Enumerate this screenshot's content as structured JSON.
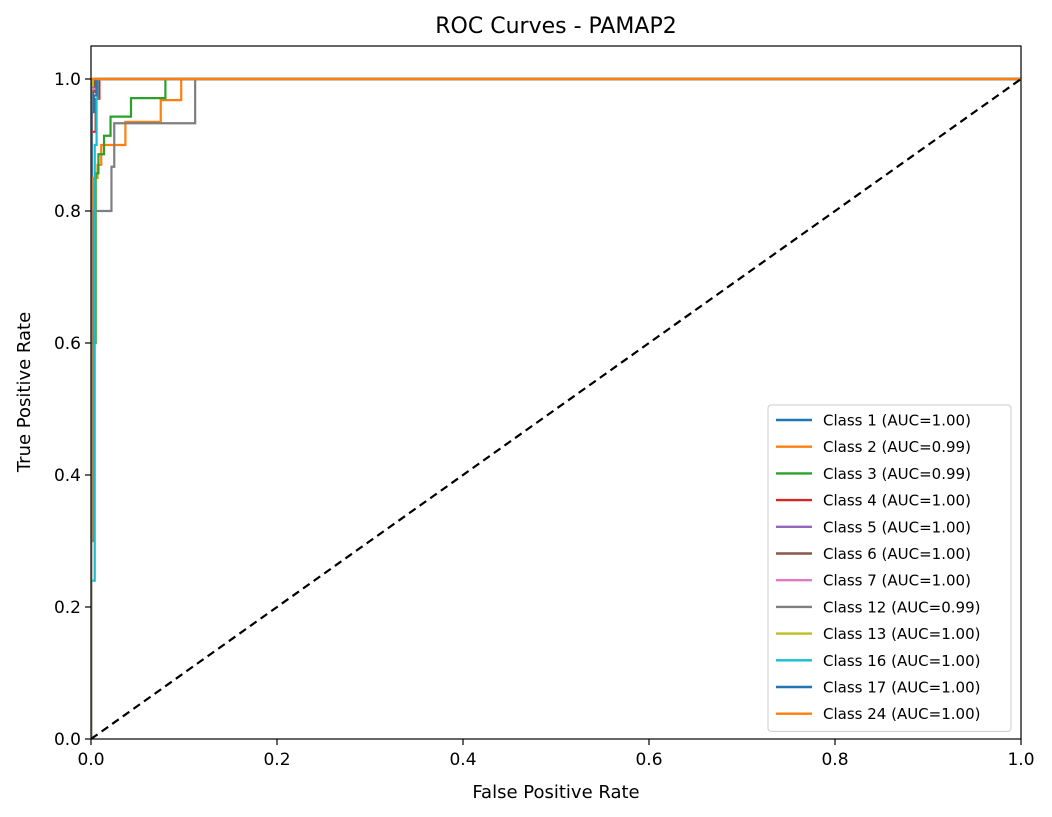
{
  "chart_data": {
    "type": "line",
    "title": "ROC Curves - PAMAP2",
    "xlabel": "False Positive Rate",
    "ylabel": "True Positive Rate",
    "xlim": [
      0.0,
      1.0
    ],
    "ylim": [
      0.0,
      1.05
    ],
    "xticks": [
      "0.0",
      "0.2",
      "0.4",
      "0.6",
      "0.8",
      "1.0"
    ],
    "yticks": [
      "0.0",
      "0.2",
      "0.4",
      "0.6",
      "0.8",
      "1.0"
    ],
    "grid": false,
    "legend_position": "lower-right",
    "reference_line": {
      "x": [
        0,
        1
      ],
      "y": [
        0,
        1
      ],
      "color": "#000000",
      "style": "dashed"
    },
    "series": [
      {
        "name": "Class 1 (AUC=1.00)",
        "color": "#1f77b4",
        "x": [
          0,
          0,
          0.001,
          0.001,
          0.002,
          0.002,
          1
        ],
        "y": [
          0,
          0.7,
          0.7,
          0.95,
          0.95,
          1,
          1
        ]
      },
      {
        "name": "Class 2 (AUC=0.99)",
        "color": "#ff7f0e",
        "x": [
          0,
          0,
          0.002,
          0.002,
          0.007,
          0.007,
          0.011,
          0.011,
          0.037,
          0.037,
          0.075,
          0.075,
          0.097,
          0.097,
          1
        ],
        "y": [
          0,
          0.3,
          0.3,
          0.85,
          0.85,
          0.87,
          0.87,
          0.9,
          0.9,
          0.935,
          0.935,
          0.968,
          0.968,
          1,
          1
        ]
      },
      {
        "name": "Class 3 (AUC=0.99)",
        "color": "#2ca02c",
        "x": [
          0,
          0,
          0.005,
          0.005,
          0.008,
          0.008,
          0.014,
          0.014,
          0.021,
          0.021,
          0.043,
          0.043,
          0.08,
          0.08,
          1
        ],
        "y": [
          0,
          0.6,
          0.6,
          0.857,
          0.857,
          0.886,
          0.886,
          0.914,
          0.914,
          0.943,
          0.943,
          0.971,
          0.971,
          1,
          1
        ]
      },
      {
        "name": "Class 4 (AUC=1.00)",
        "color": "#d62728",
        "x": [
          0,
          0,
          0.005,
          0.005,
          0.009,
          0.009,
          1
        ],
        "y": [
          0,
          0.92,
          0.92,
          0.97,
          0.97,
          1,
          1
        ]
      },
      {
        "name": "Class 5 (AUC=1.00)",
        "color": "#9467bd",
        "x": [
          0,
          0,
          0.003,
          0.003,
          1
        ],
        "y": [
          0,
          0.98,
          0.98,
          1,
          1
        ]
      },
      {
        "name": "Class 6 (AUC=1.00)",
        "color": "#8c564b",
        "x": [
          0,
          0,
          0.004,
          0.004,
          1
        ],
        "y": [
          0,
          0.98,
          0.98,
          1,
          1
        ]
      },
      {
        "name": "Class 7 (AUC=1.00)",
        "color": "#e377c2",
        "x": [
          0,
          0,
          0.006,
          0.006,
          1
        ],
        "y": [
          0,
          0.985,
          0.985,
          1,
          1
        ]
      },
      {
        "name": "Class 12 (AUC=0.99)",
        "color": "#7f7f7f",
        "x": [
          0,
          0,
          0.003,
          0.003,
          0.022,
          0.022,
          0.025,
          0.025,
          0.112,
          0.112,
          1
        ],
        "y": [
          0,
          0.3,
          0.3,
          0.8,
          0.8,
          0.867,
          0.867,
          0.933,
          0.933,
          1,
          1
        ]
      },
      {
        "name": "Class 13 (AUC=1.00)",
        "color": "#bcbd22",
        "x": [
          0,
          0,
          0.002,
          0.002,
          1
        ],
        "y": [
          0,
          0.99,
          0.99,
          1,
          1
        ]
      },
      {
        "name": "Class 16 (AUC=1.00)",
        "color": "#17becf",
        "x": [
          0,
          0,
          0.004,
          0.004,
          0.006,
          0.006,
          0.007,
          0.007,
          1
        ],
        "y": [
          0,
          0.24,
          0.24,
          0.9,
          0.9,
          0.97,
          0.97,
          1,
          1
        ]
      },
      {
        "name": "Class 17 (AUC=1.00)",
        "color": "#1f77b4",
        "x": [
          0,
          0,
          0.003,
          0.003,
          0.006,
          0.006,
          1
        ],
        "y": [
          0,
          0.95,
          0.95,
          0.975,
          0.975,
          1,
          1
        ]
      },
      {
        "name": "Class 24 (AUC=1.00)",
        "color": "#ff7f0e",
        "x": [
          0,
          0,
          1
        ],
        "y": [
          0,
          1,
          1
        ]
      }
    ]
  }
}
